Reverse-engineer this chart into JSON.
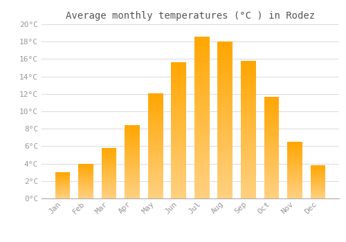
{
  "title": "Average monthly temperatures (°C ) in Rodez",
  "months": [
    "Jan",
    "Feb",
    "Mar",
    "Apr",
    "May",
    "Jun",
    "Jul",
    "Aug",
    "Sep",
    "Oct",
    "Nov",
    "Dec"
  ],
  "values": [
    3.0,
    4.0,
    5.8,
    8.4,
    12.1,
    15.6,
    18.6,
    18.0,
    15.8,
    11.7,
    6.5,
    3.8
  ],
  "bar_color": "#FFA500",
  "bar_color_light": "#FFD080",
  "background_color": "#FFFFFF",
  "grid_color": "#DDDDDD",
  "text_color": "#999999",
  "ylim": [
    0,
    20
  ],
  "yticks": [
    0,
    2,
    4,
    6,
    8,
    10,
    12,
    14,
    16,
    18,
    20
  ],
  "title_fontsize": 10,
  "tick_fontsize": 8,
  "bar_width": 0.65
}
